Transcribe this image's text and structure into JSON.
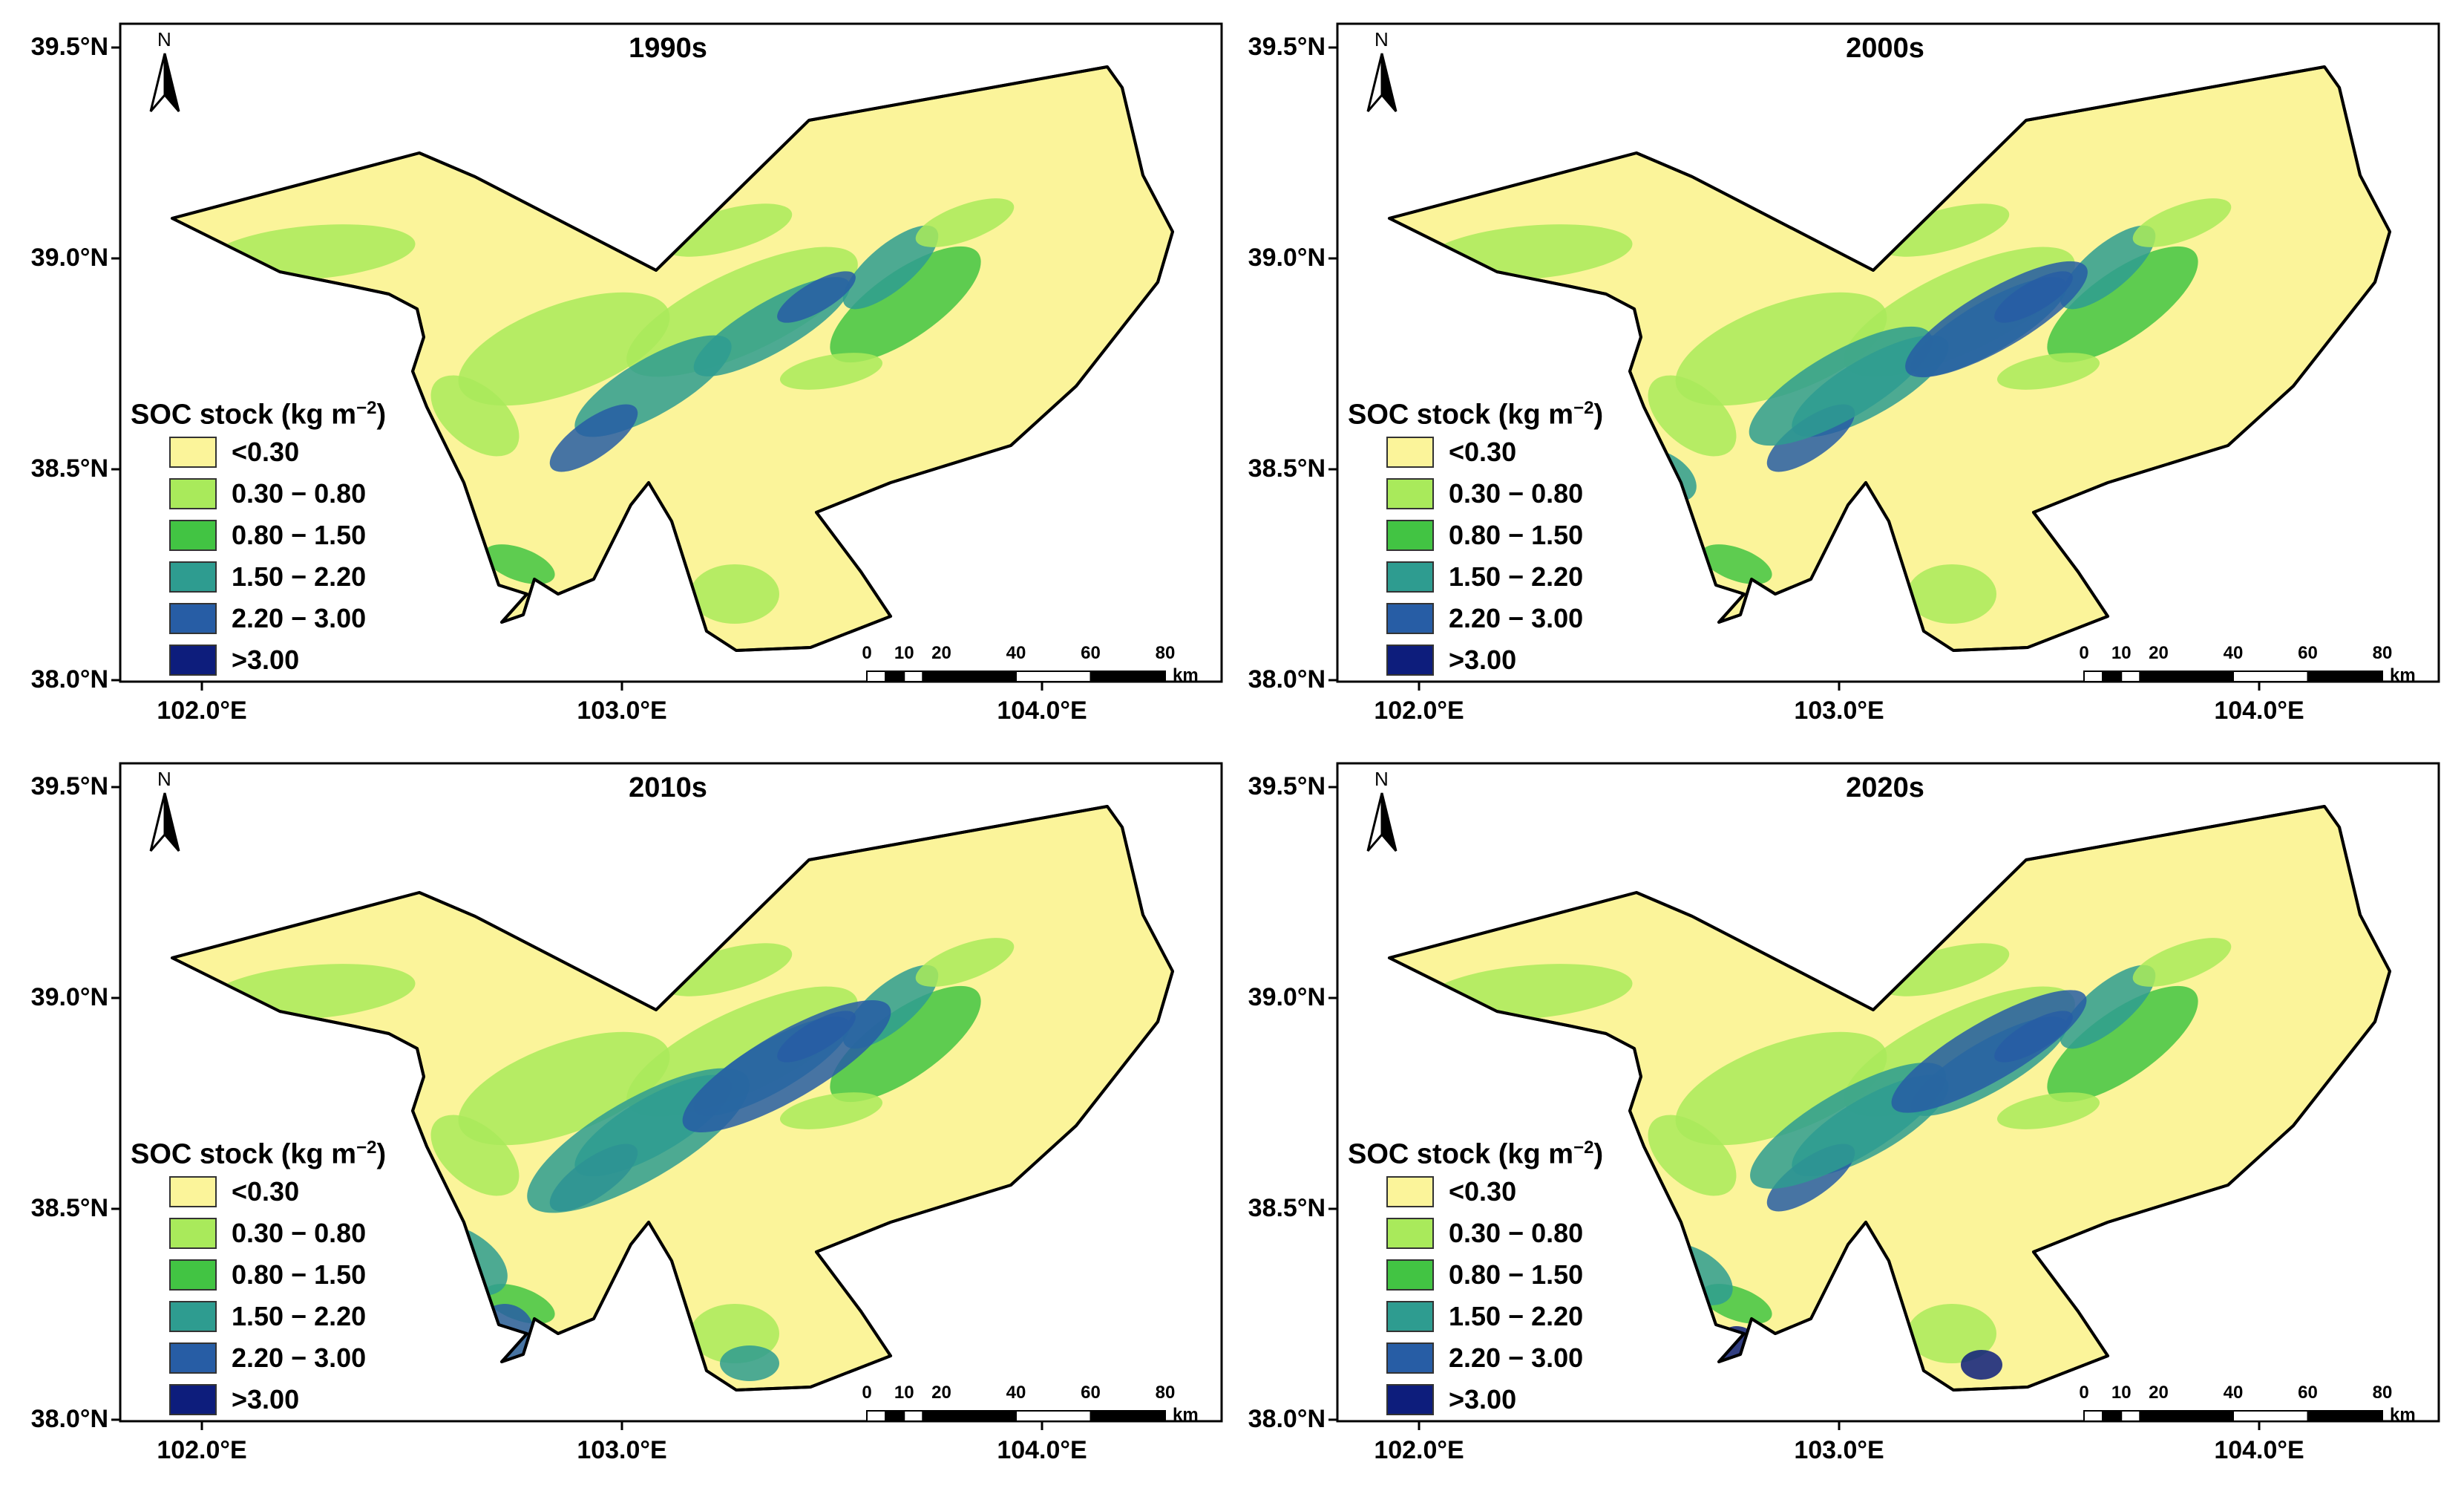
{
  "figure": {
    "lat_ticks": [
      "39.5°N",
      "39.0°N",
      "38.5°N",
      "38.0°N"
    ],
    "lon_ticks": [
      "102.0°E",
      "103.0°E",
      "104.0°E"
    ],
    "north_label": "N",
    "legend": {
      "title_main": "SOC stock (kg m",
      "title_sup": "−2",
      "title_end": ")",
      "classes": [
        {
          "label": "<0.30",
          "color": "#fbf49a"
        },
        {
          "label": "0.30 − 0.80",
          "color": "#a9ea5b"
        },
        {
          "label": "0.80 − 1.50",
          "color": "#42c443"
        },
        {
          "label": "1.50 − 2.20",
          "color": "#2e9c90"
        },
        {
          "label": "2.20 − 3.00",
          "color": "#275da5"
        },
        {
          "label": ">3.00",
          "color": "#0d1d7c"
        }
      ]
    },
    "scale_bar": {
      "ticks": [
        "0",
        "10",
        "20",
        "40",
        "60",
        "80"
      ],
      "unit": "km"
    },
    "panels": [
      {
        "title": "1990s"
      },
      {
        "title": "2000s"
      },
      {
        "title": "2010s"
      },
      {
        "title": "2020s"
      }
    ]
  }
}
